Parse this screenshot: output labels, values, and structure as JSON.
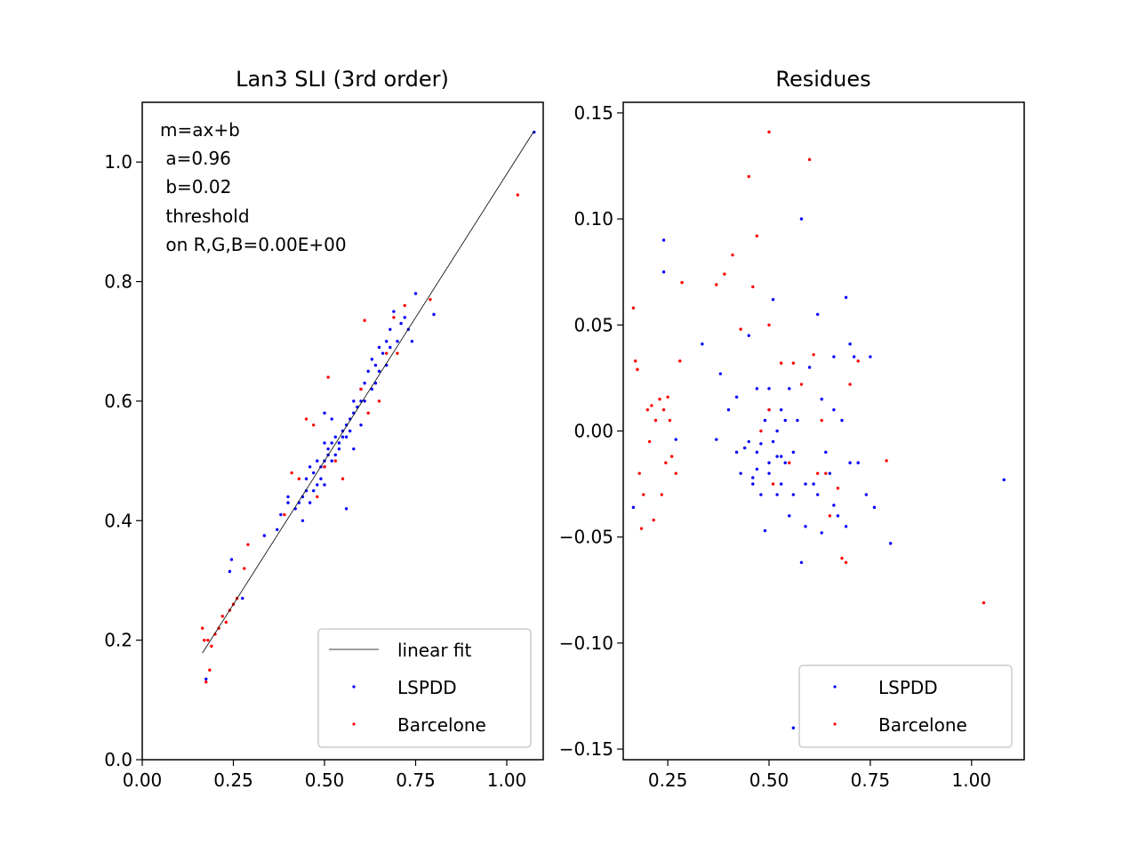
{
  "chart_data": [
    {
      "type": "scatter",
      "title": "Lan3 SLI (3rd order)",
      "xlabel": "",
      "ylabel": "",
      "xlim": [
        0.0,
        1.1
      ],
      "ylim": [
        0.0,
        1.1
      ],
      "xticks": [
        "0.00",
        "0.25",
        "0.50",
        "0.75",
        "1.00"
      ],
      "yticks": [
        "0.0",
        "0.2",
        "0.4",
        "0.6",
        "0.8",
        "1.0"
      ],
      "annotation": [
        "m=ax+b",
        " a=0.96",
        " b=0.02",
        " threshold",
        " on R,G,B=0.00E+00"
      ],
      "grid": false,
      "legend": {
        "position": "lower-right",
        "entries": [
          "linear fit",
          "LSPDD",
          "Barcelone"
        ]
      },
      "fit": {
        "label": "linear fit",
        "a": 0.96,
        "b": 0.02,
        "x_range": [
          0.165,
          1.075
        ],
        "color": "#000000"
      },
      "series": [
        {
          "name": "LSPDD",
          "color": "#0000ff",
          "points": [
            [
              0.175,
              0.135
            ],
            [
              0.24,
              0.315
            ],
            [
              0.245,
              0.335
            ],
            [
              0.275,
              0.27
            ],
            [
              0.335,
              0.375
            ],
            [
              0.37,
              0.385
            ],
            [
              0.38,
              0.41
            ],
            [
              0.4,
              0.43
            ],
            [
              0.4,
              0.44
            ],
            [
              0.42,
              0.42
            ],
            [
              0.43,
              0.43
            ],
            [
              0.44,
              0.44
            ],
            [
              0.44,
              0.4
            ],
            [
              0.45,
              0.45
            ],
            [
              0.45,
              0.47
            ],
            [
              0.46,
              0.43
            ],
            [
              0.46,
              0.49
            ],
            [
              0.47,
              0.45
            ],
            [
              0.47,
              0.48
            ],
            [
              0.48,
              0.46
            ],
            [
              0.48,
              0.5
            ],
            [
              0.49,
              0.47
            ],
            [
              0.49,
              0.49
            ],
            [
              0.5,
              0.46
            ],
            [
              0.5,
              0.49
            ],
            [
              0.5,
              0.5
            ],
            [
              0.51,
              0.51
            ],
            [
              0.51,
              0.52
            ],
            [
              0.52,
              0.5
            ],
            [
              0.52,
              0.53
            ],
            [
              0.53,
              0.51
            ],
            [
              0.53,
              0.54
            ],
            [
              0.54,
              0.52
            ],
            [
              0.54,
              0.53
            ],
            [
              0.55,
              0.54
            ],
            [
              0.55,
              0.55
            ],
            [
              0.56,
              0.54
            ],
            [
              0.56,
              0.56
            ],
            [
              0.57,
              0.55
            ],
            [
              0.57,
              0.57
            ],
            [
              0.58,
              0.58
            ],
            [
              0.58,
              0.6
            ],
            [
              0.59,
              0.59
            ],
            [
              0.6,
              0.6
            ],
            [
              0.6,
              0.62
            ],
            [
              0.61,
              0.6
            ],
            [
              0.61,
              0.63
            ],
            [
              0.62,
              0.65
            ],
            [
              0.63,
              0.62
            ],
            [
              0.63,
              0.67
            ],
            [
              0.64,
              0.66
            ],
            [
              0.65,
              0.65
            ],
            [
              0.65,
              0.69
            ],
            [
              0.66,
              0.68
            ],
            [
              0.67,
              0.7
            ],
            [
              0.68,
              0.69
            ],
            [
              0.68,
              0.72
            ],
            [
              0.69,
              0.75
            ],
            [
              0.7,
              0.7
            ],
            [
              0.71,
              0.73
            ],
            [
              0.72,
              0.74
            ],
            [
              0.73,
              0.72
            ],
            [
              0.74,
              0.7
            ],
            [
              0.75,
              0.78
            ],
            [
              0.8,
              0.745
            ],
            [
              0.56,
              0.42
            ],
            [
              0.5,
              0.58
            ],
            [
              0.52,
              0.57
            ],
            [
              0.58,
              0.52
            ],
            [
              0.64,
              0.63
            ],
            [
              0.5,
              0.53
            ],
            [
              0.6,
              0.56
            ],
            [
              0.67,
              0.66
            ],
            [
              1.075,
              1.05
            ]
          ]
        },
        {
          "name": "Barcelone",
          "color": "#ff0000",
          "points": [
            [
              0.165,
              0.22
            ],
            [
              0.17,
              0.2
            ],
            [
              0.175,
              0.13
            ],
            [
              0.18,
              0.2
            ],
            [
              0.185,
              0.15
            ],
            [
              0.19,
              0.19
            ],
            [
              0.2,
              0.21
            ],
            [
              0.21,
              0.22
            ],
            [
              0.22,
              0.24
            ],
            [
              0.23,
              0.23
            ],
            [
              0.24,
              0.25
            ],
            [
              0.25,
              0.26
            ],
            [
              0.26,
              0.27
            ],
            [
              0.28,
              0.32
            ],
            [
              0.29,
              0.36
            ],
            [
              0.39,
              0.41
            ],
            [
              0.41,
              0.48
            ],
            [
              0.43,
              0.47
            ],
            [
              0.45,
              0.57
            ],
            [
              0.47,
              0.56
            ],
            [
              0.48,
              0.44
            ],
            [
              0.5,
              0.49
            ],
            [
              0.51,
              0.64
            ],
            [
              0.53,
              0.5
            ],
            [
              0.55,
              0.47
            ],
            [
              0.6,
              0.62
            ],
            [
              0.61,
              0.735
            ],
            [
              0.62,
              0.58
            ],
            [
              0.65,
              0.6
            ],
            [
              0.67,
              0.68
            ],
            [
              0.69,
              0.74
            ],
            [
              0.7,
              0.68
            ],
            [
              0.72,
              0.76
            ],
            [
              0.79,
              0.77
            ],
            [
              1.03,
              0.945
            ]
          ]
        }
      ]
    },
    {
      "type": "scatter",
      "title": "Residues",
      "xlabel": "",
      "ylabel": "",
      "xlim": [
        0.14,
        1.13
      ],
      "ylim": [
        -0.155,
        0.155
      ],
      "xticks": [
        "0.25",
        "0.50",
        "0.75",
        "1.00"
      ],
      "yticks": [
        "0.15",
        "0.10",
        "0.05",
        "0.00",
        "−0.05",
        "−0.10",
        "−0.15"
      ],
      "grid": false,
      "legend": {
        "position": "lower-right",
        "entries": [
          "LSPDD",
          "Barcelone"
        ]
      },
      "series": [
        {
          "name": "LSPDD",
          "color": "#0000ff",
          "points": [
            [
              0.165,
              -0.036
            ],
            [
              0.24,
              0.09
            ],
            [
              0.24,
              0.075
            ],
            [
              0.27,
              -0.004
            ],
            [
              0.335,
              0.041
            ],
            [
              0.37,
              -0.004
            ],
            [
              0.38,
              0.027
            ],
            [
              0.4,
              0.01
            ],
            [
              0.42,
              -0.01
            ],
            [
              0.43,
              -0.02
            ],
            [
              0.44,
              -0.008
            ],
            [
              0.45,
              0.045
            ],
            [
              0.46,
              -0.025
            ],
            [
              0.47,
              0.02
            ],
            [
              0.47,
              -0.01
            ],
            [
              0.48,
              -0.03
            ],
            [
              0.49,
              -0.047
            ],
            [
              0.49,
              0.005
            ],
            [
              0.5,
              -0.015
            ],
            [
              0.5,
              -0.02
            ],
            [
              0.51,
              0.062
            ],
            [
              0.51,
              -0.005
            ],
            [
              0.52,
              0.0
            ],
            [
              0.52,
              -0.03
            ],
            [
              0.53,
              0.01
            ],
            [
              0.53,
              -0.025
            ],
            [
              0.54,
              0.005
            ],
            [
              0.54,
              -0.015
            ],
            [
              0.55,
              -0.04
            ],
            [
              0.55,
              0.02
            ],
            [
              0.56,
              -0.01
            ],
            [
              0.56,
              -0.14
            ],
            [
              0.57,
              0.005
            ],
            [
              0.58,
              -0.062
            ],
            [
              0.58,
              0.1
            ],
            [
              0.59,
              -0.045
            ],
            [
              0.6,
              0.03
            ],
            [
              0.61,
              -0.025
            ],
            [
              0.62,
              0.055
            ],
            [
              0.63,
              -0.048
            ],
            [
              0.63,
              0.015
            ],
            [
              0.64,
              -0.01
            ],
            [
              0.65,
              -0.02
            ],
            [
              0.66,
              0.035
            ],
            [
              0.66,
              -0.035
            ],
            [
              0.67,
              -0.04
            ],
            [
              0.68,
              0.005
            ],
            [
              0.69,
              -0.045
            ],
            [
              0.69,
              0.063
            ],
            [
              0.7,
              0.041
            ],
            [
              0.7,
              -0.015
            ],
            [
              0.71,
              0.035
            ],
            [
              0.72,
              -0.015
            ],
            [
              0.74,
              -0.03
            ],
            [
              0.75,
              0.035
            ],
            [
              0.76,
              -0.036
            ],
            [
              0.8,
              -0.053
            ],
            [
              1.08,
              -0.023
            ],
            [
              0.45,
              -0.005
            ],
            [
              0.47,
              -0.018
            ],
            [
              0.5,
              0.02
            ],
            [
              0.53,
              -0.012
            ],
            [
              0.56,
              -0.03
            ],
            [
              0.59,
              -0.025
            ],
            [
              0.62,
              -0.03
            ],
            [
              0.66,
              0.01
            ],
            [
              0.42,
              0.016
            ],
            [
              0.46,
              -0.022
            ],
            [
              0.48,
              -0.006
            ],
            [
              0.5,
              0.01
            ],
            [
              0.52,
              -0.012
            ]
          ]
        },
        {
          "name": "Barcelone",
          "color": "#ff0000",
          "points": [
            [
              0.165,
              0.058
            ],
            [
              0.17,
              0.033
            ],
            [
              0.175,
              0.029
            ],
            [
              0.18,
              -0.02
            ],
            [
              0.185,
              -0.046
            ],
            [
              0.19,
              -0.03
            ],
            [
              0.2,
              0.01
            ],
            [
              0.205,
              -0.005
            ],
            [
              0.21,
              0.012
            ],
            [
              0.215,
              -0.042
            ],
            [
              0.22,
              0.005
            ],
            [
              0.23,
              0.015
            ],
            [
              0.235,
              -0.03
            ],
            [
              0.24,
              0.01
            ],
            [
              0.245,
              -0.015
            ],
            [
              0.25,
              0.016
            ],
            [
              0.255,
              0.005
            ],
            [
              0.26,
              -0.012
            ],
            [
              0.27,
              -0.02
            ],
            [
              0.28,
              0.033
            ],
            [
              0.285,
              0.07
            ],
            [
              0.37,
              0.069
            ],
            [
              0.39,
              0.074
            ],
            [
              0.41,
              0.083
            ],
            [
              0.43,
              0.048
            ],
            [
              0.45,
              0.12
            ],
            [
              0.46,
              0.068
            ],
            [
              0.47,
              0.092
            ],
            [
              0.48,
              0.0
            ],
            [
              0.5,
              0.05
            ],
            [
              0.5,
              0.141
            ],
            [
              0.51,
              -0.025
            ],
            [
              0.53,
              0.032
            ],
            [
              0.56,
              0.032
            ],
            [
              0.58,
              0.022
            ],
            [
              0.6,
              0.128
            ],
            [
              0.61,
              0.036
            ],
            [
              0.62,
              -0.02
            ],
            [
              0.64,
              -0.02
            ],
            [
              0.65,
              -0.04
            ],
            [
              0.67,
              -0.027
            ],
            [
              0.68,
              -0.06
            ],
            [
              0.69,
              -0.062
            ],
            [
              0.7,
              0.022
            ],
            [
              0.72,
              0.033
            ],
            [
              0.79,
              -0.014
            ],
            [
              1.03,
              -0.081
            ],
            [
              0.5,
              0.01
            ],
            [
              0.55,
              -0.015
            ],
            [
              0.63,
              0.005
            ]
          ]
        }
      ]
    }
  ]
}
